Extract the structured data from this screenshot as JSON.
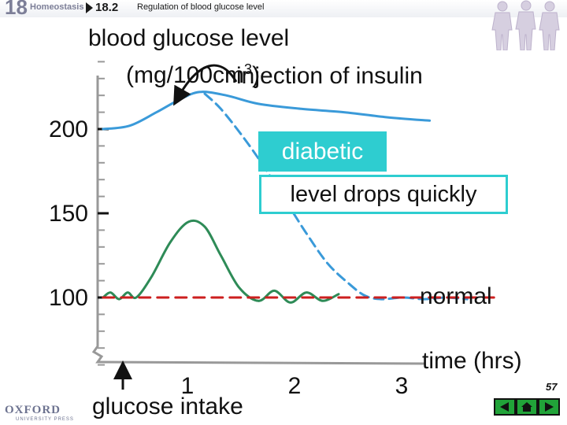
{
  "header": {
    "chapter_number": "18",
    "chapter_title": "Homeostasis",
    "section_number": "18.2",
    "section_title": "Regulation of blood glucose level"
  },
  "footer": {
    "page_number": "57",
    "publisher": "OXFORD",
    "publisher_sub": "UNIVERSITY PRESS",
    "nav_buttons": [
      "back-icon",
      "home-icon",
      "forward-icon"
    ]
  },
  "chart_data": {
    "type": "line",
    "ylabel": "blood glucose level",
    "yunit": "(mg/100cm",
    "yunit_sup": "3",
    "yunit_close": ")",
    "xlabel": "time (hrs)",
    "y_ticks": [
      "200",
      "150",
      "100"
    ],
    "x_ticks": [
      "1",
      "2",
      "3"
    ],
    "annotations": {
      "injection": "injection of insulin",
      "diabetic": "diabetic",
      "drops": "level drops quickly",
      "normal": "normal",
      "glucose_intake": "glucose intake"
    },
    "colors": {
      "diabetic": "#3a9ad9",
      "normal": "#2e8b57",
      "reference": "#cc1f1f",
      "box": "#2ecdd0"
    },
    "ylim": [
      50,
      260
    ],
    "xlim": [
      0,
      3.8
    ],
    "series": [
      {
        "key": "diabetic_untreated",
        "style": "solid",
        "color_key": "diabetic",
        "x": [
          0.05,
          0.3,
          0.55,
          0.75,
          0.95,
          1.2,
          1.5,
          1.9,
          2.3,
          2.7,
          3.1
        ],
        "y": [
          200,
          202,
          210,
          217,
          222,
          220,
          215,
          212,
          210,
          207,
          205
        ]
      },
      {
        "key": "diabetic_insulin",
        "style": "dashed",
        "color_key": "diabetic",
        "x": [
          1.0,
          1.15,
          1.35,
          1.55,
          1.75,
          1.95,
          2.15,
          2.35,
          2.5,
          2.65,
          2.85,
          3.05,
          3.25,
          3.45
        ],
        "y": [
          221,
          212,
          196,
          178,
          158,
          138,
          120,
          108,
          101,
          99,
          100,
          99,
          100,
          99
        ]
      },
      {
        "key": "normal",
        "style": "solid",
        "color_key": "normal",
        "x": [
          0.05,
          0.12,
          0.2,
          0.28,
          0.36,
          0.5,
          0.68,
          0.85,
          1.0,
          1.15,
          1.32,
          1.5,
          1.65,
          1.8,
          1.95,
          2.1,
          2.25
        ],
        "y": [
          100,
          103,
          99,
          103,
          100,
          112,
          133,
          145,
          142,
          125,
          106,
          98,
          104,
          97,
          103,
          98,
          102
        ]
      },
      {
        "key": "normal_level",
        "style": "dashed",
        "color_key": "reference",
        "x": [
          0.05,
          3.7
        ],
        "y": [
          100,
          100
        ]
      }
    ]
  }
}
